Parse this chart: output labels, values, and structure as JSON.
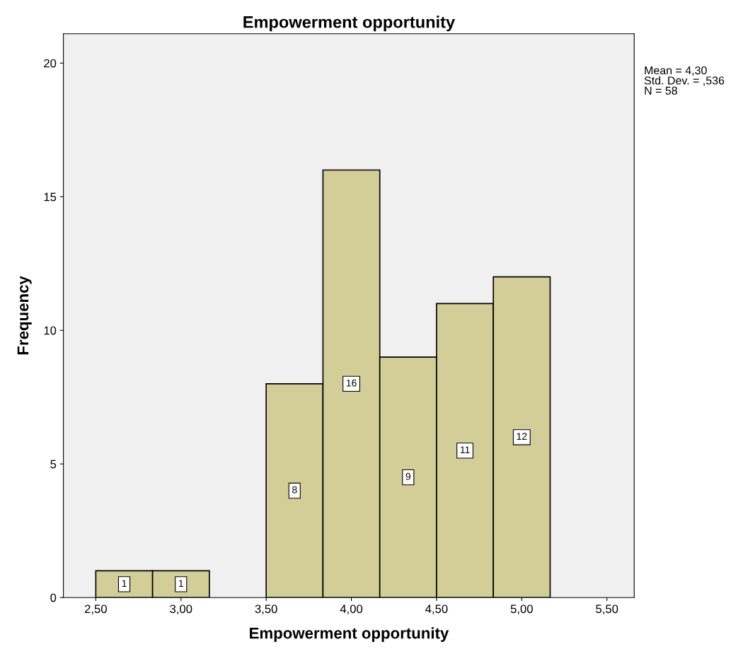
{
  "chart_data": {
    "type": "histogram",
    "title": "Empowerment opportunity",
    "xlabel": "Empowerment opportunity",
    "ylabel": "Frequency",
    "bins": [
      2.5,
      2.8333,
      3.1667,
      3.5,
      3.8333,
      4.1667,
      4.5,
      4.8333,
      5.1667
    ],
    "values": [
      1,
      1,
      0,
      8,
      16,
      9,
      11,
      12
    ],
    "value_labels": [
      "1",
      "1",
      null,
      "8",
      "16",
      "9",
      "11",
      "12"
    ],
    "color": "#d3ce97",
    "xlim": [
      2.31,
      5.66
    ],
    "ylim": [
      0,
      21.1
    ],
    "xticks": [
      {
        "value": 2.5,
        "label": "2,50"
      },
      {
        "value": 3.0,
        "label": "3,00"
      },
      {
        "value": 3.5,
        "label": "3,50"
      },
      {
        "value": 4.0,
        "label": "4,00"
      },
      {
        "value": 4.5,
        "label": "4,50"
      },
      {
        "value": 5.0,
        "label": "5,00"
      },
      {
        "value": 5.5,
        "label": "5,50"
      }
    ],
    "yticks": [
      0,
      5,
      10,
      15,
      20
    ],
    "grid": false,
    "annotations": [
      "Mean = 4,30\nStd. Dev. = ,536\nN = 58"
    ]
  }
}
